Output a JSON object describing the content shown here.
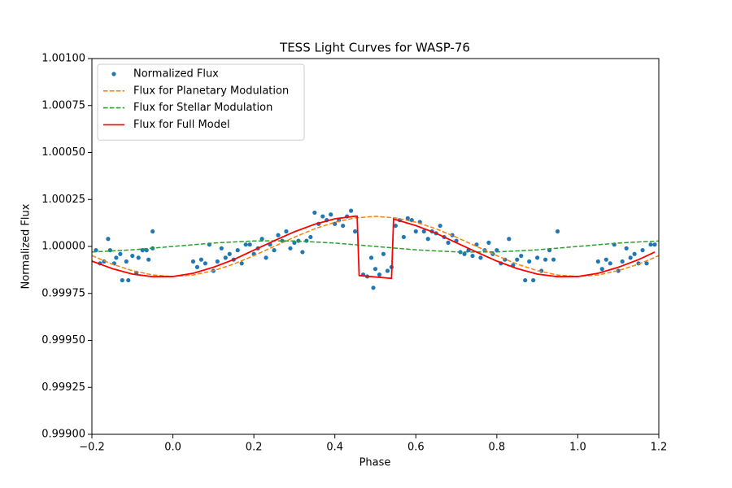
{
  "chart_data": {
    "type": "line",
    "title": "TESS Light Curves for WASP-76",
    "xlabel": "Phase",
    "ylabel": "Normalized Flux",
    "xlim": [
      -0.2,
      1.2
    ],
    "xticks": [
      {
        "value": -0.2,
        "label": "−0.2"
      },
      {
        "value": 0.0,
        "label": "0.0"
      },
      0.2,
      0.4,
      0.6,
      0.8,
      {
        "value": 1.0,
        "label": "1.0"
      },
      1.2
    ],
    "ylim": [
      0.999,
      1.001
    ],
    "yticks": [
      {
        "value": 0.999,
        "label": "0.99900"
      },
      {
        "value": 0.99925,
        "label": "0.99925"
      },
      {
        "value": 0.9995,
        "label": "0.99950"
      },
      {
        "value": 0.99975,
        "label": "0.99975"
      },
      {
        "value": 1.0,
        "label": "1.00000"
      },
      {
        "value": 1.00025,
        "label": "1.00025"
      },
      {
        "value": 1.0005,
        "label": "1.00050"
      },
      {
        "value": 1.00075,
        "label": "1.00075"
      },
      {
        "value": 1.001,
        "label": "1.00100"
      }
    ],
    "legend": "upper left",
    "series": [
      {
        "name": "Normalized Flux",
        "color": "#1f77b4",
        "marker": "o",
        "x": [
          -0.19,
          -0.18,
          -0.17,
          -0.16,
          -0.155,
          -0.145,
          -0.14,
          -0.13,
          -0.125,
          -0.115,
          -0.11,
          -0.1,
          -0.09,
          -0.085,
          -0.075,
          -0.065,
          -0.06,
          -0.05,
          -0.05,
          0.05,
          0.06,
          0.07,
          0.08,
          0.09,
          0.1,
          0.11,
          0.12,
          0.13,
          0.14,
          0.15,
          0.16,
          0.17,
          0.18,
          0.19,
          0.2,
          0.21,
          0.22,
          0.23,
          0.24,
          0.25,
          0.26,
          0.27,
          0.28,
          0.29,
          0.3,
          0.31,
          0.32,
          0.33,
          0.34,
          0.35,
          0.36,
          0.37,
          0.38,
          0.39,
          0.4,
          0.41,
          0.42,
          0.43,
          0.44,
          0.45,
          0.47,
          0.48,
          0.49,
          0.495,
          0.5,
          0.51,
          0.52,
          0.53,
          0.54,
          0.55,
          0.56,
          0.57,
          0.58,
          0.59,
          0.6,
          0.61,
          0.62,
          0.63,
          0.64,
          0.65,
          0.66,
          0.67,
          0.68,
          0.69,
          0.7,
          0.71,
          0.72,
          0.73,
          0.74,
          0.75,
          0.76,
          0.77,
          0.78,
          0.79,
          0.8,
          0.81,
          0.82,
          0.83,
          0.84,
          0.85,
          0.86,
          0.87,
          0.88,
          0.89,
          0.9,
          0.91,
          0.92,
          0.93,
          0.94,
          0.95,
          1.05,
          1.06,
          1.07,
          1.08,
          1.09,
          1.1,
          1.11,
          1.12,
          1.13,
          1.14,
          1.15,
          1.16,
          1.17,
          1.18,
          1.19
        ],
        "values": [
          0.99998,
          0.99991,
          0.99992,
          1.00004,
          0.99998,
          0.99991,
          0.99994,
          0.99996,
          0.99982,
          0.99992,
          0.99982,
          0.99995,
          0.99986,
          0.99994,
          0.99998,
          0.99998,
          0.99993,
          0.99999,
          1.00008,
          0.99992,
          0.99989,
          0.99993,
          0.99991,
          1.00001,
          0.99987,
          0.99992,
          0.99999,
          0.99994,
          0.99996,
          0.99993,
          0.99998,
          0.99991,
          1.00001,
          1.00001,
          0.99996,
          0.99999,
          1.00004,
          0.99994,
          1.00001,
          0.99998,
          1.00006,
          1.00003,
          1.00008,
          0.99999,
          1.00002,
          1.00003,
          0.99997,
          1.00003,
          1.00005,
          1.00018,
          1.00012,
          1.00016,
          1.00014,
          1.00017,
          1.00012,
          1.00014,
          1.00011,
          1.00016,
          1.00019,
          1.00008,
          0.99985,
          0.99984,
          0.99994,
          0.99978,
          0.99988,
          0.99985,
          0.99996,
          0.99987,
          0.99989,
          1.00011,
          1.00014,
          1.00005,
          1.00015,
          1.00014,
          1.00008,
          1.00013,
          1.00008,
          1.00004,
          1.00008,
          1.00007,
          1.00011,
          1.00005,
          1.00002,
          1.00006,
          1.00003,
          0.99997,
          0.99996,
          0.99998,
          0.99995,
          1.00001,
          0.99994,
          0.99998,
          1.00002,
          0.99996,
          0.99998,
          0.99991,
          0.99993,
          1.00004,
          0.9999,
          0.99993,
          0.99995,
          0.99982,
          0.99992,
          0.99982,
          0.99994,
          0.99987,
          0.99993,
          0.99998,
          0.99993,
          1.00008,
          0.99992,
          0.99988,
          0.99993,
          0.99991,
          1.00001,
          0.99987,
          0.99992,
          0.99999,
          0.99994,
          0.99996,
          0.99991,
          0.99998,
          0.99991,
          1.00001,
          1.00001
        ]
      },
      {
        "name": "Flux for Planetary Modulation",
        "color": "#ff7f0e",
        "linestyle": "dashed",
        "x": [
          -0.2,
          -0.15,
          -0.1,
          -0.05,
          0,
          0.05,
          0.1,
          0.15,
          0.2,
          0.25,
          0.3,
          0.35,
          0.4,
          0.45,
          0.5,
          0.55,
          0.6,
          0.65,
          0.7,
          0.75,
          0.8,
          0.85,
          0.9,
          0.95,
          1.0,
          1.05,
          1.1,
          1.15,
          1.2
        ],
        "values": [
          0.999951,
          0.999906,
          0.999871,
          0.999848,
          0.99984,
          0.999848,
          0.999871,
          0.999906,
          0.999951,
          1.0,
          1.000049,
          1.000094,
          1.000129,
          1.000152,
          1.00016,
          1.000152,
          1.000129,
          1.000094,
          1.000049,
          1.0,
          0.999951,
          0.999906,
          0.999871,
          0.999848,
          0.99984,
          0.999848,
          0.999871,
          0.999906,
          0.999951
        ]
      },
      {
        "name": "Flux for Stellar Modulation",
        "color": "#2ca02c",
        "linestyle": "dashed",
        "x": [
          -0.2,
          -0.15,
          -0.1,
          -0.05,
          0,
          0.05,
          0.1,
          0.15,
          0.2,
          0.25,
          0.3,
          0.35,
          0.4,
          0.45,
          0.5,
          0.55,
          0.6,
          0.65,
          0.7,
          0.75,
          0.8,
          0.85,
          0.9,
          0.95,
          1.0,
          1.05,
          1.1,
          1.15,
          1.2
        ],
        "values": [
          0.999971,
          0.999976,
          0.999982,
          0.999991,
          1.0,
          1.000009,
          1.000018,
          1.000024,
          1.000029,
          1.00003,
          1.000029,
          1.000024,
          1.000018,
          1.000009,
          1.0,
          0.999991,
          0.999982,
          0.999976,
          0.999971,
          0.99997,
          0.999971,
          0.999976,
          0.999982,
          0.999991,
          1.0,
          1.000009,
          1.000018,
          1.000024,
          1.000029
        ]
      },
      {
        "name": "Flux for Full Model",
        "color": "#ff0000",
        "linestyle": "solid",
        "x": [
          -0.2,
          -0.15,
          -0.1,
          -0.05,
          0,
          0.05,
          0.1,
          0.15,
          0.2,
          0.25,
          0.3,
          0.35,
          0.4,
          0.45,
          0.455,
          0.46,
          0.54,
          0.545,
          0.55,
          0.6,
          0.65,
          0.7,
          0.75,
          0.8,
          0.85,
          0.9,
          0.95,
          1.0,
          1.05,
          1.1,
          1.15,
          1.19
        ],
        "values": [
          0.999922,
          0.999882,
          0.999853,
          0.999839,
          0.99984,
          0.999857,
          0.999889,
          0.99993,
          0.99998,
          1.00003,
          1.000078,
          1.000118,
          1.000147,
          1.000161,
          1.000161,
          0.999845,
          0.99983,
          1.000146,
          1.000143,
          1.000111,
          1.00007,
          1.00002,
          0.99997,
          0.999922,
          0.999882,
          0.999853,
          0.999839,
          0.99984,
          0.999857,
          0.999889,
          0.99993,
          0.99997
        ]
      }
    ]
  }
}
